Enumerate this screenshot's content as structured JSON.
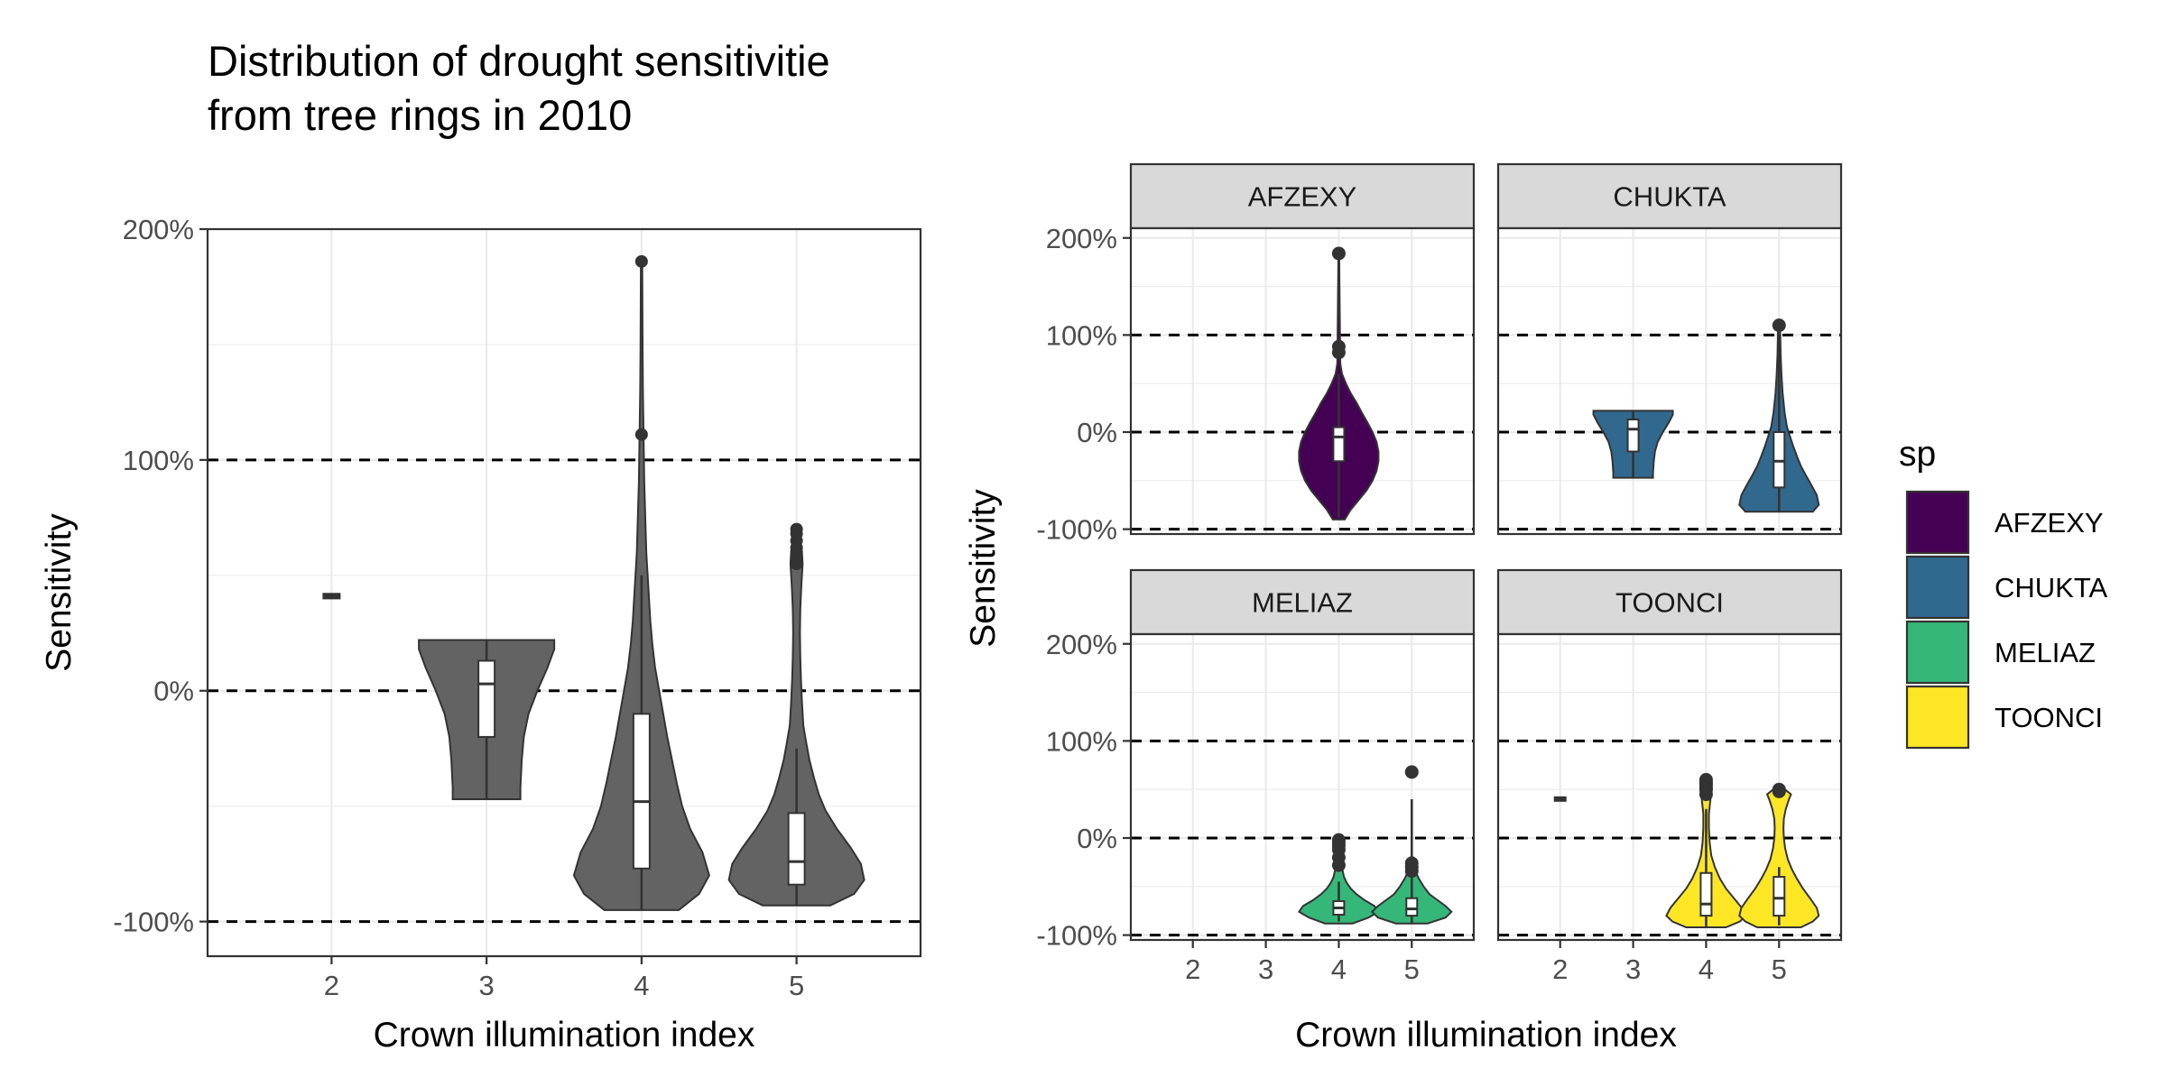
{
  "title_lines": [
    "Distribution of drought sensitivitie",
    "from tree rings in 2010"
  ],
  "colors": {
    "pooled": "#636363",
    "AFZEXY": "#440154",
    "CHUKTA": "#31688E",
    "MELIAZ": "#35B779",
    "TOONCI": "#FDE725",
    "outline": "#333333",
    "grid": "#ebebeb",
    "strip": "#d9d9d9"
  },
  "legend": {
    "title": "sp",
    "placement": "right",
    "items": [
      "AFZEXY",
      "CHUKTA",
      "MELIAZ",
      "TOONCI"
    ]
  },
  "chart_data": [
    {
      "type": "violin",
      "title": "Distribution of drought sensitivitie from tree rings in 2010",
      "xlabel": "Crown illumination index",
      "ylabel": "Sensitivity",
      "categories": [
        "2",
        "3",
        "4",
        "5"
      ],
      "ylim": [
        -115,
        200
      ],
      "yticks": [
        -100,
        0,
        100,
        200
      ],
      "ytick_labels": [
        "-100%",
        "0%",
        "100%",
        "200%"
      ],
      "reference_lines": [
        -100,
        0,
        100
      ],
      "grid": true,
      "groups": [
        {
          "x": "2",
          "violin": [],
          "box": {
            "lo": 40,
            "q1": 40,
            "med": 41,
            "q3": 42,
            "hi": 42
          },
          "outliers": []
        },
        {
          "x": "3",
          "violin": [
            [
              -47,
              0.5
            ],
            [
              -42,
              0.5
            ],
            [
              -30,
              0.52
            ],
            [
              -20,
              0.55
            ],
            [
              -10,
              0.62
            ],
            [
              0,
              0.75
            ],
            [
              10,
              0.9
            ],
            [
              18,
              1
            ],
            [
              22,
              1
            ]
          ],
          "box": {
            "lo": -47,
            "q1": -20,
            "med": 3,
            "q3": 13,
            "hi": 22
          },
          "outliers": []
        },
        {
          "x": "4",
          "violin": [
            [
              -95,
              0.55
            ],
            [
              -88,
              0.85
            ],
            [
              -80,
              1
            ],
            [
              -70,
              0.9
            ],
            [
              -60,
              0.72
            ],
            [
              -50,
              0.6
            ],
            [
              -40,
              0.52
            ],
            [
              -30,
              0.45
            ],
            [
              -20,
              0.38
            ],
            [
              -10,
              0.32
            ],
            [
              0,
              0.26
            ],
            [
              10,
              0.2
            ],
            [
              20,
              0.16
            ],
            [
              30,
              0.13
            ],
            [
              40,
              0.11
            ],
            [
              50,
              0.09
            ],
            [
              60,
              0.07
            ],
            [
              70,
              0.06
            ],
            [
              80,
              0.05
            ],
            [
              90,
              0.04
            ],
            [
              100,
              0.035
            ],
            [
              110,
              0.03
            ],
            [
              130,
              0.02
            ],
            [
              150,
              0.015
            ],
            [
              170,
              0.012
            ],
            [
              186,
              0.01
            ]
          ],
          "box": {
            "lo": -95,
            "q1": -77,
            "med": -48,
            "q3": -10,
            "hi": 50
          },
          "outliers": [
            111,
            186
          ]
        },
        {
          "x": "5",
          "violin": [
            [
              -93,
              0.5
            ],
            [
              -88,
              0.85
            ],
            [
              -82,
              1
            ],
            [
              -75,
              0.95
            ],
            [
              -68,
              0.8
            ],
            [
              -60,
              0.6
            ],
            [
              -52,
              0.43
            ],
            [
              -45,
              0.33
            ],
            [
              -38,
              0.26
            ],
            [
              -30,
              0.19
            ],
            [
              -22,
              0.14
            ],
            [
              -15,
              0.1
            ],
            [
              -5,
              0.08
            ],
            [
              5,
              0.065
            ],
            [
              15,
              0.055
            ],
            [
              25,
              0.05
            ],
            [
              35,
              0.055
            ],
            [
              45,
              0.07
            ],
            [
              55,
              0.09
            ],
            [
              60,
              0.08
            ],
            [
              65,
              0.06
            ],
            [
              70,
              0.05
            ]
          ],
          "box": {
            "lo": -93,
            "q1": -84,
            "med": -74,
            "q3": -53,
            "hi": -25
          },
          "outliers": [
            55,
            58,
            60,
            62,
            65,
            68,
            70
          ]
        }
      ]
    },
    {
      "type": "violin",
      "facet_by": "sp",
      "xlabel": "Crown illumination index",
      "ylabel": "Sensitivity",
      "categories": [
        "2",
        "3",
        "4",
        "5"
      ],
      "ylim": [
        -100,
        200
      ],
      "yticks": [
        -100,
        0,
        100,
        200
      ],
      "ytick_labels": [
        "-100%",
        "0%",
        "100%",
        "200%"
      ],
      "reference_lines": [
        -100,
        0,
        100
      ],
      "grid": true,
      "panels": [
        {
          "name": "AFZEXY",
          "groups": [
            {
              "x": "4",
              "violin": [
                [
                  -90,
                  0.15
                ],
                [
                  -80,
                  0.3
                ],
                [
                  -70,
                  0.5
                ],
                [
                  -60,
                  0.7
                ],
                [
                  -50,
                  0.85
                ],
                [
                  -40,
                  0.95
                ],
                [
                  -30,
                  1
                ],
                [
                  -20,
                  1
                ],
                [
                  -10,
                  0.95
                ],
                [
                  0,
                  0.85
                ],
                [
                  10,
                  0.72
                ],
                [
                  20,
                  0.58
                ],
                [
                  30,
                  0.45
                ],
                [
                  40,
                  0.3
                ],
                [
                  50,
                  0.18
                ],
                [
                  60,
                  0.08
                ],
                [
                  70,
                  0.04
                ],
                [
                  80,
                  0.03
                ],
                [
                  100,
                  0.03
                ],
                [
                  120,
                  0.025
                ],
                [
                  140,
                  0.02
                ],
                [
                  160,
                  0.015
                ],
                [
                  186,
                  0.01
                ]
              ],
              "box": {
                "lo": -88,
                "q1": -30,
                "med": -5,
                "q3": 5,
                "hi": 60
              },
              "outliers": [
                82,
                88,
                184
              ]
            }
          ]
        },
        {
          "name": "CHUKTA",
          "groups": [
            {
              "x": "3",
              "violin": [
                [
                  -47,
                  0.5
                ],
                [
                  -42,
                  0.5
                ],
                [
                  -30,
                  0.52
                ],
                [
                  -20,
                  0.55
                ],
                [
                  -10,
                  0.62
                ],
                [
                  0,
                  0.75
                ],
                [
                  10,
                  0.9
                ],
                [
                  18,
                  1
                ],
                [
                  22,
                  1
                ]
              ],
              "box": {
                "lo": -47,
                "q1": -20,
                "med": 3,
                "q3": 13,
                "hi": 22
              },
              "outliers": []
            },
            {
              "x": "5",
              "violin": [
                [
                  -82,
                  0.85
                ],
                [
                  -75,
                  1
                ],
                [
                  -65,
                  0.95
                ],
                [
                  -55,
                  0.82
                ],
                [
                  -45,
                  0.68
                ],
                [
                  -35,
                  0.55
                ],
                [
                  -25,
                  0.45
                ],
                [
                  -15,
                  0.36
                ],
                [
                  -5,
                  0.28
                ],
                [
                  5,
                  0.2
                ],
                [
                  20,
                  0.14
                ],
                [
                  40,
                  0.09
                ],
                [
                  60,
                  0.06
                ],
                [
                  80,
                  0.04
                ],
                [
                  100,
                  0.03
                ],
                [
                  110,
                  0.02
                ]
              ],
              "box": {
                "lo": -82,
                "q1": -57,
                "med": -30,
                "q3": 0,
                "hi": 100
              },
              "outliers": [
                110
              ]
            }
          ]
        },
        {
          "name": "MELIAZ",
          "groups": [
            {
              "x": "4",
              "violin": [
                [
                  -88,
                  0.35
                ],
                [
                  -82,
                  0.75
                ],
                [
                  -76,
                  1
                ],
                [
                  -70,
                  0.9
                ],
                [
                  -64,
                  0.65
                ],
                [
                  -58,
                  0.45
                ],
                [
                  -52,
                  0.3
                ],
                [
                  -46,
                  0.2
                ],
                [
                  -40,
                  0.13
                ],
                [
                  -30,
                  0.08
                ],
                [
                  -20,
                  0.06
                ],
                [
                  -10,
                  0.05
                ],
                [
                  -2,
                  0.04
                ]
              ],
              "box": {
                "lo": -86,
                "q1": -79,
                "med": -72,
                "q3": -65,
                "hi": -45
              },
              "outliers": [
                -2,
                -5,
                -8,
                -12,
                -20,
                -28
              ]
            },
            {
              "x": "5",
              "violin": [
                [
                  -88,
                  0.4
                ],
                [
                  -82,
                  0.85
                ],
                [
                  -76,
                  1
                ],
                [
                  -70,
                  0.85
                ],
                [
                  -64,
                  0.65
                ],
                [
                  -58,
                  0.45
                ],
                [
                  -50,
                  0.3
                ],
                [
                  -42,
                  0.18
                ],
                [
                  -35,
                  0.1
                ],
                [
                  -28,
                  0.06
                ],
                [
                  -20,
                  0.04
                ]
              ],
              "box": {
                "lo": -88,
                "q1": -80,
                "med": -73,
                "q3": -62,
                "hi": 40
              },
              "outliers": [
                -26,
                -30,
                -34,
                68
              ]
            }
          ]
        },
        {
          "name": "TOONCI",
          "groups": [
            {
              "x": "2",
              "violin": [],
              "box": {
                "lo": 40,
                "q1": 40,
                "med": 41,
                "q3": 42,
                "hi": 42
              },
              "outliers": []
            },
            {
              "x": "4",
              "violin": [
                [
                  -92,
                  0.5
                ],
                [
                  -86,
                  0.85
                ],
                [
                  -80,
                  1
                ],
                [
                  -72,
                  0.9
                ],
                [
                  -62,
                  0.7
                ],
                [
                  -52,
                  0.5
                ],
                [
                  -42,
                  0.35
                ],
                [
                  -30,
                  0.22
                ],
                [
                  -18,
                  0.13
                ],
                [
                  -5,
                  0.09
                ],
                [
                  10,
                  0.07
                ],
                [
                  25,
                  0.07
                ],
                [
                  40,
                  0.11
                ],
                [
                  48,
                  0.14
                ],
                [
                  55,
                  0.1
                ],
                [
                  60,
                  0.06
                ]
              ],
              "box": {
                "lo": -92,
                "q1": -80,
                "med": -68,
                "q3": -36,
                "hi": 30
              },
              "outliers": [
                45,
                50,
                52,
                55,
                57,
                60
              ]
            },
            {
              "x": "5",
              "violin": [
                [
                  -92,
                  0.55
                ],
                [
                  -86,
                  0.85
                ],
                [
                  -80,
                  1
                ],
                [
                  -72,
                  0.95
                ],
                [
                  -62,
                  0.78
                ],
                [
                  -52,
                  0.6
                ],
                [
                  -42,
                  0.45
                ],
                [
                  -32,
                  0.32
                ],
                [
                  -22,
                  0.22
                ],
                [
                  -10,
                  0.15
                ],
                [
                  0,
                  0.12
                ],
                [
                  10,
                  0.11
                ],
                [
                  20,
                  0.12
                ],
                [
                  30,
                  0.17
                ],
                [
                  40,
                  0.25
                ],
                [
                  45,
                  0.3
                ],
                [
                  50,
                  0.15
                ]
              ],
              "box": {
                "lo": -90,
                "q1": -80,
                "med": -62,
                "q3": -40,
                "hi": -30
              },
              "outliers": [
                48,
                50
              ]
            }
          ]
        }
      ]
    }
  ]
}
